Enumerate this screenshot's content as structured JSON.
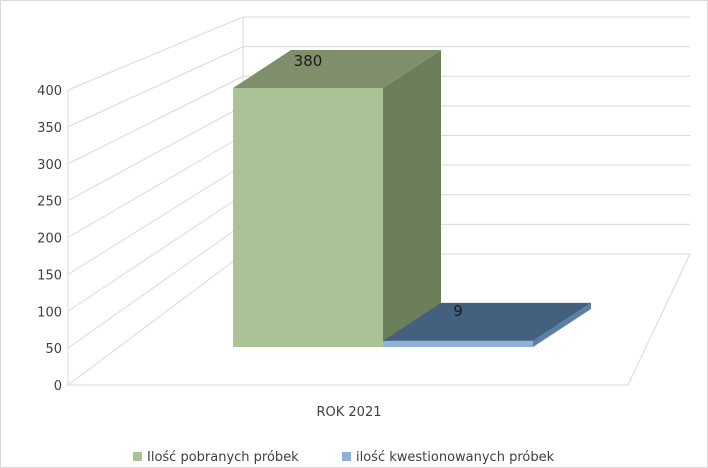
{
  "chart_data": {
    "type": "bar",
    "style": "3d-column",
    "categories": [
      "ROK 2021"
    ],
    "series": [
      {
        "name": "Ilość pobranych próbek",
        "values": [
          380
        ],
        "color": "#a9c397",
        "side_color": "#6b7f5a",
        "top_color": "#7f8f6b"
      },
      {
        "name": "ilość kwestionowanych próbek",
        "values": [
          9
        ],
        "color": "#8fb1d8",
        "side_color": "#5b7fa6",
        "top_color": "#44607f"
      }
    ],
    "ylim": [
      0,
      400
    ],
    "yticks": [
      "0",
      "50",
      "100",
      "150",
      "200",
      "250",
      "300",
      "350",
      "400"
    ],
    "data_labels": [
      "380",
      "9"
    ],
    "grid": true,
    "legend": "bottom"
  }
}
